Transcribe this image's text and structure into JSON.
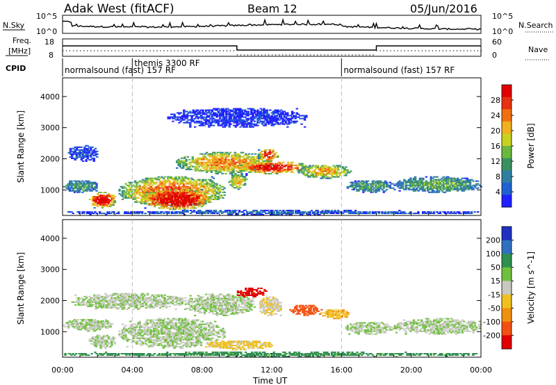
{
  "header": {
    "title": "Adak West (fitACF)",
    "beam": "Beam 12",
    "date": "05/Jun/2016"
  },
  "strip": {
    "nsky_label": "N.Sky",
    "nsearch_label": "N.Search",
    "nsky_ticks": [
      "10^5",
      "10^0"
    ],
    "nsearch_ticks": [
      "10^5",
      "10^0"
    ],
    "freq_label_1": "Freq.",
    "freq_label_2": "[MHz]",
    "freq_ticks": [
      "18",
      "8"
    ],
    "nave_label": "Nave",
    "nave_ticks": [
      "60",
      "0"
    ],
    "cpid_label": "CPID"
  },
  "modes": [
    {
      "start_hour": 0,
      "label": "normalsound (fast) 157 RF",
      "row": 2
    },
    {
      "start_hour": 4,
      "label": "themis 3300 RF",
      "row": 1
    },
    {
      "start_hour": 16,
      "label": "normalsound (fast) 157 RF",
      "row": 2
    }
  ],
  "chart_data": [
    {
      "type": "heatmap",
      "panel": "power",
      "ylabel": "Slant Range [km]",
      "xlabel": "Time UT",
      "xlim": [
        0,
        24
      ],
      "ylim": [
        180,
        4600
      ],
      "y_ticks": [
        1000,
        2000,
        3000,
        4000
      ],
      "x_ticks": [
        "00:00",
        "04:00",
        "08:00",
        "12:00",
        "16:00",
        "20:00",
        "00:00"
      ],
      "colorbar_label": "Power [dB]",
      "colorbar_ticks": [
        4,
        8,
        12,
        16,
        20,
        24,
        28
      ],
      "colorscale": [
        "#2020ff",
        "#2060d0",
        "#2f7fa0",
        "#3a9060",
        "#6ab840",
        "#c8d020",
        "#f0b020",
        "#f07010",
        "#e83010",
        "#e00000"
      ],
      "regions": [
        {
          "t0": 0.0,
          "t1": 24.0,
          "r0": 180,
          "r1": 320,
          "level": 0.15
        },
        {
          "t0": 0.0,
          "t1": 2.0,
          "r0": 900,
          "r1": 1300,
          "level": 0.3
        },
        {
          "t0": 1.5,
          "t1": 3.0,
          "r0": 400,
          "r1": 900,
          "level": 0.85
        },
        {
          "t0": 3.2,
          "t1": 9.3,
          "r0": 450,
          "r1": 1400,
          "level": 0.65
        },
        {
          "t0": 4.5,
          "t1": 8.5,
          "r0": 350,
          "r1": 1000,
          "level": 0.9
        },
        {
          "t0": 9.5,
          "t1": 10.5,
          "r0": 1000,
          "r1": 1500,
          "level": 0.55
        },
        {
          "t0": 6.5,
          "t1": 12.0,
          "r0": 1500,
          "r1": 2200,
          "level": 0.6
        },
        {
          "t0": 10.0,
          "t1": 14.0,
          "r0": 1500,
          "r1": 1900,
          "level": 0.8
        },
        {
          "t0": 11.2,
          "t1": 12.3,
          "r0": 1900,
          "r1": 2300,
          "level": 0.75
        },
        {
          "t0": 13.5,
          "t1": 16.5,
          "r0": 1350,
          "r1": 1800,
          "level": 0.55
        },
        {
          "t0": 16.2,
          "t1": 19.0,
          "r0": 900,
          "r1": 1300,
          "level": 0.3
        },
        {
          "t0": 19.0,
          "t1": 24.0,
          "r0": 900,
          "r1": 1400,
          "level": 0.35
        },
        {
          "t0": 0.3,
          "t1": 2.0,
          "r0": 1900,
          "r1": 2400,
          "level": 0.1
        },
        {
          "t0": 6.0,
          "t1": 14.0,
          "r0": 3000,
          "r1": 3600,
          "level": 0.05
        }
      ]
    },
    {
      "type": "heatmap",
      "panel": "velocity",
      "ylabel": "Slant Range [km]",
      "xlabel": "Time UT",
      "xlim": [
        0,
        24
      ],
      "ylim": [
        180,
        4600
      ],
      "y_ticks": [
        1000,
        2000,
        3000,
        4000
      ],
      "x_ticks": [
        "00:00",
        "04:00",
        "08:00",
        "12:00",
        "16:00",
        "20:00",
        "00:00"
      ],
      "colorbar_label": "Velocity [m s^-1]",
      "colorbar_ticks": [
        200,
        100,
        50,
        15,
        -15,
        -50,
        -100,
        -200
      ],
      "colorscale": [
        "#2030c0",
        "#2f70c0",
        "#2f8f50",
        "#70c040",
        "#c8c8c0",
        "#f0c020",
        "#f09010",
        "#f05010",
        "#e00000"
      ],
      "regions": [
        {
          "t0": 0.0,
          "t1": 24.0,
          "r0": 180,
          "r1": 320,
          "level": 0.3
        },
        {
          "t0": 0.0,
          "t1": 2.8,
          "r0": 1000,
          "r1": 1400,
          "level": 0.45
        },
        {
          "t0": 1.5,
          "t1": 3.0,
          "r0": 450,
          "r1": 900,
          "level": 0.45
        },
        {
          "t0": 3.2,
          "t1": 9.3,
          "r0": 450,
          "r1": 1400,
          "level": 0.45
        },
        {
          "t0": 0.5,
          "t1": 7.0,
          "r0": 1700,
          "r1": 2200,
          "level": 0.45
        },
        {
          "t0": 7.0,
          "t1": 11.0,
          "r0": 1500,
          "r1": 2200,
          "level": 0.45
        },
        {
          "t0": 10.0,
          "t1": 11.7,
          "r0": 2100,
          "r1": 2400,
          "level": 0.92
        },
        {
          "t0": 11.2,
          "t1": 12.5,
          "r0": 1500,
          "r1": 2100,
          "level": 0.55
        },
        {
          "t0": 13.0,
          "t1": 14.8,
          "r0": 1500,
          "r1": 1850,
          "level": 0.82
        },
        {
          "t0": 14.8,
          "t1": 16.5,
          "r0": 1400,
          "r1": 1700,
          "level": 0.65
        },
        {
          "t0": 16.2,
          "t1": 19.0,
          "r0": 900,
          "r1": 1300,
          "level": 0.45
        },
        {
          "t0": 19.0,
          "t1": 24.0,
          "r0": 900,
          "r1": 1400,
          "level": 0.45
        },
        {
          "t0": 8.0,
          "t1": 12.0,
          "r0": 400,
          "r1": 700,
          "level": 0.58
        }
      ]
    }
  ]
}
